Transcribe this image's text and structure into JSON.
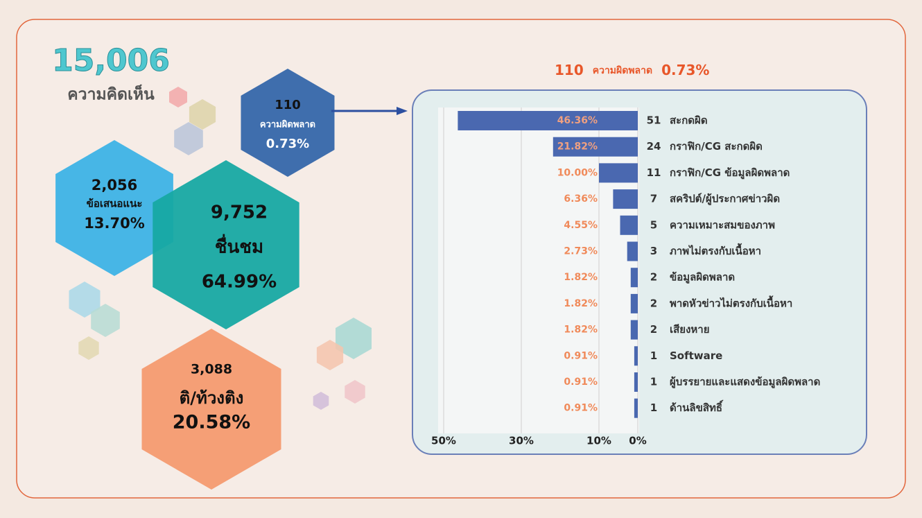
{
  "total": {
    "value": "15,006",
    "label": "ความคิดเห็น"
  },
  "hexagons": {
    "errors": {
      "count": "110",
      "label": "ความผิดพลาด",
      "percent": "0.73%"
    },
    "suggestions": {
      "count": "2,056",
      "label": "ข้อเสนอแนะ",
      "percent": "13.70%"
    },
    "praise": {
      "count": "9,752",
      "label": "ชื่นชม",
      "percent": "64.99%"
    },
    "criticism": {
      "count": "3,088",
      "label": "ติ/ท้วงติง",
      "percent": "20.58%"
    }
  },
  "chart_data": {
    "type": "bar",
    "title": {
      "count": "110",
      "label": "ความผิดพลาด",
      "percent": "0.73%"
    },
    "categories": [
      "สะกดผิด",
      "กราฟิก/CG สะกดผิด",
      "กราฟิก/CG ข้อมูลผิดพลาด",
      "สคริปต์/ผู้ประกาศข่าวผิด",
      "ความเหมาะสมของภาพ",
      "ภาพไม่ตรงกับเนื้อหา",
      "ข้อมูลผิดพลาด",
      "พาดหัวข่าวไม่ตรงกับเนื้อหา",
      "เสียงหาย",
      "Software",
      "ผู้บรรยายและแสดงข้อมูลผิดพลาด",
      "ด้านลิขสิทธิ์"
    ],
    "counts": [
      51,
      24,
      11,
      7,
      5,
      3,
      2,
      2,
      2,
      1,
      1,
      1
    ],
    "values": [
      46.36,
      21.82,
      10.0,
      6.36,
      4.55,
      2.73,
      1.82,
      1.82,
      1.82,
      0.91,
      0.91,
      0.91
    ],
    "value_labels": [
      "46.36%",
      "21.82%",
      "10.00%",
      "6.36%",
      "4.55%",
      "2.73%",
      "1.82%",
      "1.82%",
      "1.82%",
      "0.91%",
      "0.91%",
      "0.91%"
    ],
    "color": "#4a68b0",
    "xlim": [
      0,
      50
    ],
    "xticks": [
      {
        "value": 50,
        "label": "50%"
      },
      {
        "value": 30,
        "label": "30%"
      },
      {
        "value": 10,
        "label": "10%"
      },
      {
        "value": 0,
        "label": "0%"
      }
    ],
    "reversed": true,
    "grid": true
  }
}
